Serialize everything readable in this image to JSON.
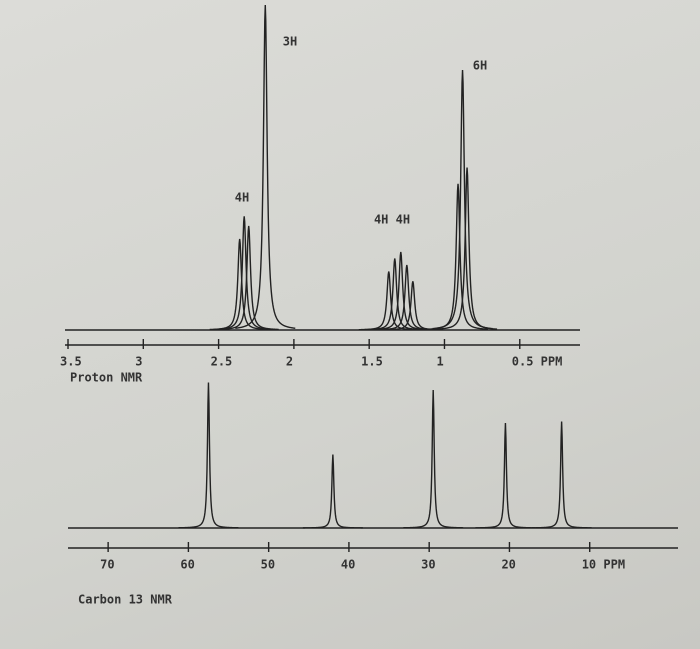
{
  "chart_data": [
    {
      "type": "peaks",
      "title": "Proton NMR",
      "x": [
        2.36,
        2.33,
        2.3,
        2.19,
        1.37,
        1.33,
        1.29,
        1.25,
        1.21,
        0.91,
        0.88,
        0.85
      ],
      "values": [
        0.28,
        0.35,
        0.32,
        1.0,
        0.18,
        0.22,
        0.24,
        0.2,
        0.15,
        0.45,
        0.8,
        0.5
      ],
      "xlim": [
        3.52,
        0.1
      ],
      "ylim": [
        0,
        1
      ],
      "xticks": [
        3.5,
        3.0,
        2.5,
        2.0,
        1.5,
        1.0,
        {
          "value": 0.5,
          "label": "0.5 PPM"
        }
      ],
      "annotations": [
        "4H",
        "3H",
        "4H 4H",
        "6H"
      ],
      "color": "#222222"
    },
    {
      "type": "peaks",
      "title": "Carbon 13 NMR",
      "x": [
        57.5,
        42,
        29.5,
        20.5,
        13.5
      ],
      "values": [
        0.97,
        0.49,
        0.92,
        0.7,
        0.71
      ],
      "xlim": [
        75,
        -1
      ],
      "ylim": [
        0,
        1
      ],
      "xticks": [
        70,
        60,
        50,
        40,
        30,
        20,
        {
          "value": 10,
          "label": "10 PPM"
        }
      ],
      "color": "#222222"
    }
  ]
}
